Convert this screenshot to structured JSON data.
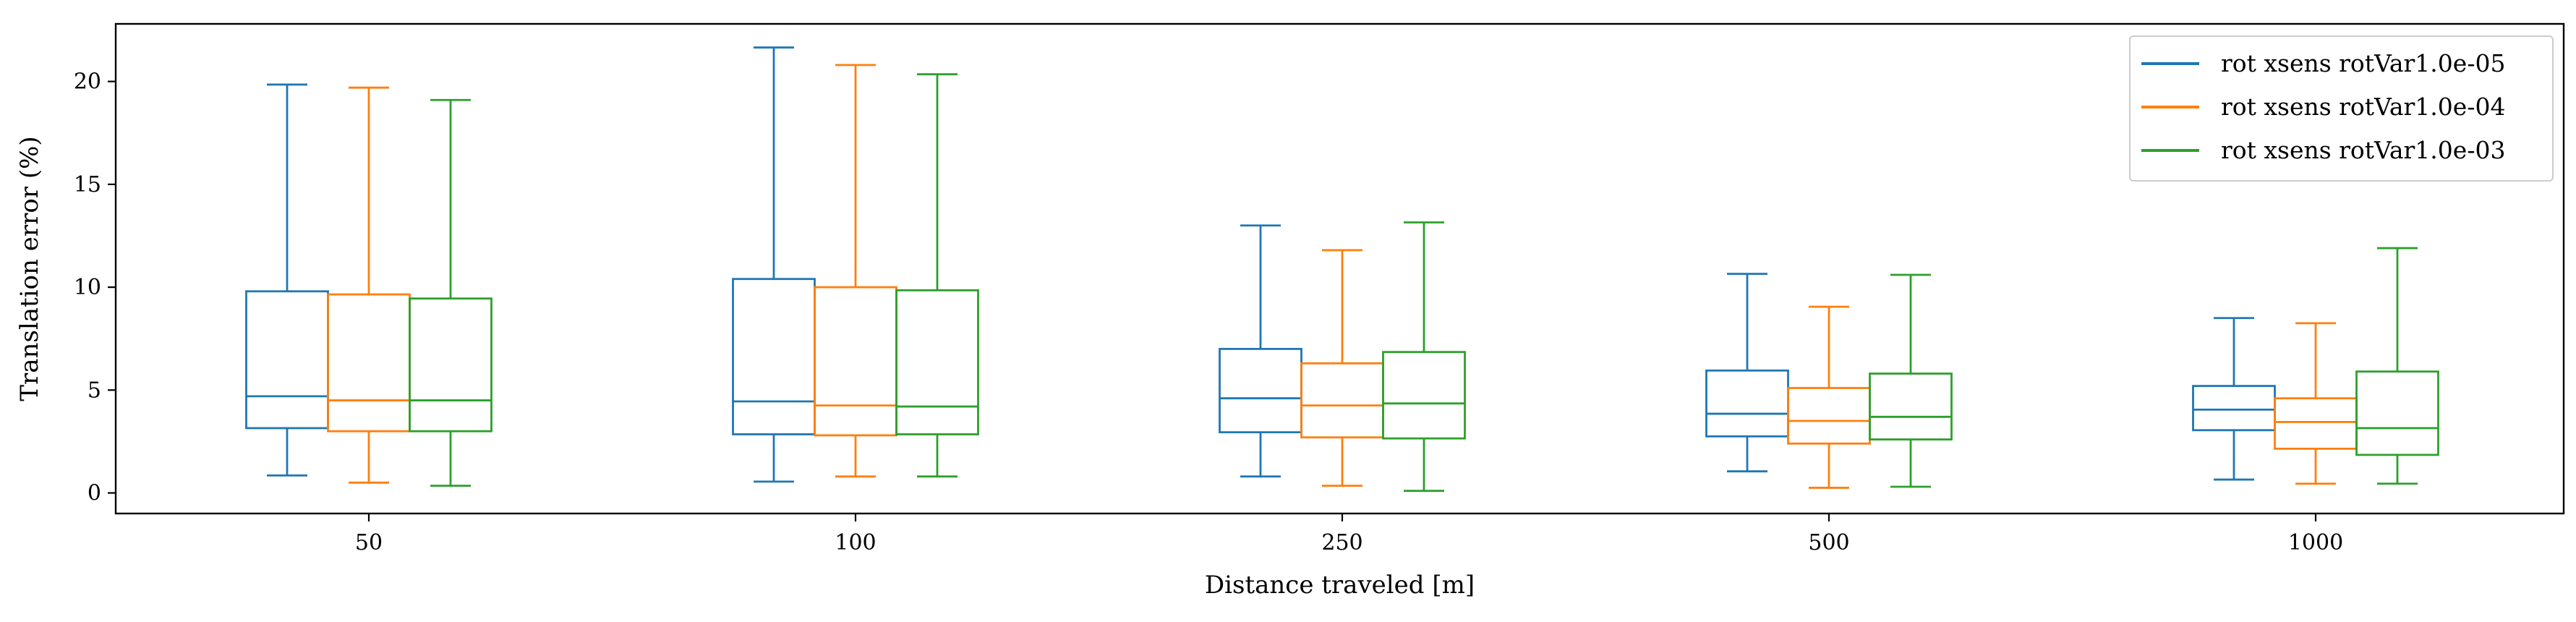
{
  "chart_data": {
    "type": "boxplot",
    "xlabel": "Distance traveled [m]",
    "ylabel": "Translation error (%)",
    "categories": [
      "50",
      "100",
      "250",
      "500",
      "1000"
    ],
    "ylim": [
      -1.0,
      22.8
    ],
    "yticks": [
      0,
      5,
      10,
      15,
      20
    ],
    "grid": false,
    "legend_position": "top-right",
    "series": [
      {
        "name": "rot xsens rotVar1.0e-05",
        "color": "#1f77b4",
        "boxes": [
          {
            "whisker_low": 0.85,
            "q1": 3.15,
            "median": 4.7,
            "q3": 9.8,
            "whisker_high": 19.85
          },
          {
            "whisker_low": 0.55,
            "q1": 2.85,
            "median": 4.45,
            "q3": 10.4,
            "whisker_high": 21.65
          },
          {
            "whisker_low": 0.8,
            "q1": 2.95,
            "median": 4.6,
            "q3": 7.0,
            "whisker_high": 13.0
          },
          {
            "whisker_low": 1.05,
            "q1": 2.75,
            "median": 3.85,
            "q3": 5.95,
            "whisker_high": 10.65
          },
          {
            "whisker_low": 0.65,
            "q1": 3.05,
            "median": 4.05,
            "q3": 5.2,
            "whisker_high": 8.5
          }
        ]
      },
      {
        "name": "rot xsens rotVar1.0e-04",
        "color": "#ff7f0e",
        "boxes": [
          {
            "whisker_low": 0.5,
            "q1": 3.0,
            "median": 4.5,
            "q3": 9.65,
            "whisker_high": 19.7
          },
          {
            "whisker_low": 0.8,
            "q1": 2.8,
            "median": 4.25,
            "q3": 10.0,
            "whisker_high": 20.8
          },
          {
            "whisker_low": 0.35,
            "q1": 2.7,
            "median": 4.25,
            "q3": 6.3,
            "whisker_high": 11.8
          },
          {
            "whisker_low": 0.25,
            "q1": 2.4,
            "median": 3.5,
            "q3": 5.1,
            "whisker_high": 9.05
          },
          {
            "whisker_low": 0.45,
            "q1": 2.15,
            "median": 3.45,
            "q3": 4.6,
            "whisker_high": 8.25
          }
        ]
      },
      {
        "name": "rot xsens rotVar1.0e-03",
        "color": "#2ca02c",
        "boxes": [
          {
            "whisker_low": 0.35,
            "q1": 3.0,
            "median": 4.5,
            "q3": 9.45,
            "whisker_high": 19.1
          },
          {
            "whisker_low": 0.8,
            "q1": 2.85,
            "median": 4.2,
            "q3": 9.85,
            "whisker_high": 20.35
          },
          {
            "whisker_low": 0.1,
            "q1": 2.65,
            "median": 4.35,
            "q3": 6.85,
            "whisker_high": 13.15
          },
          {
            "whisker_low": 0.3,
            "q1": 2.6,
            "median": 3.7,
            "q3": 5.8,
            "whisker_high": 10.6
          },
          {
            "whisker_low": 0.45,
            "q1": 1.85,
            "median": 3.15,
            "q3": 5.9,
            "whisker_high": 11.9
          }
        ]
      }
    ]
  }
}
